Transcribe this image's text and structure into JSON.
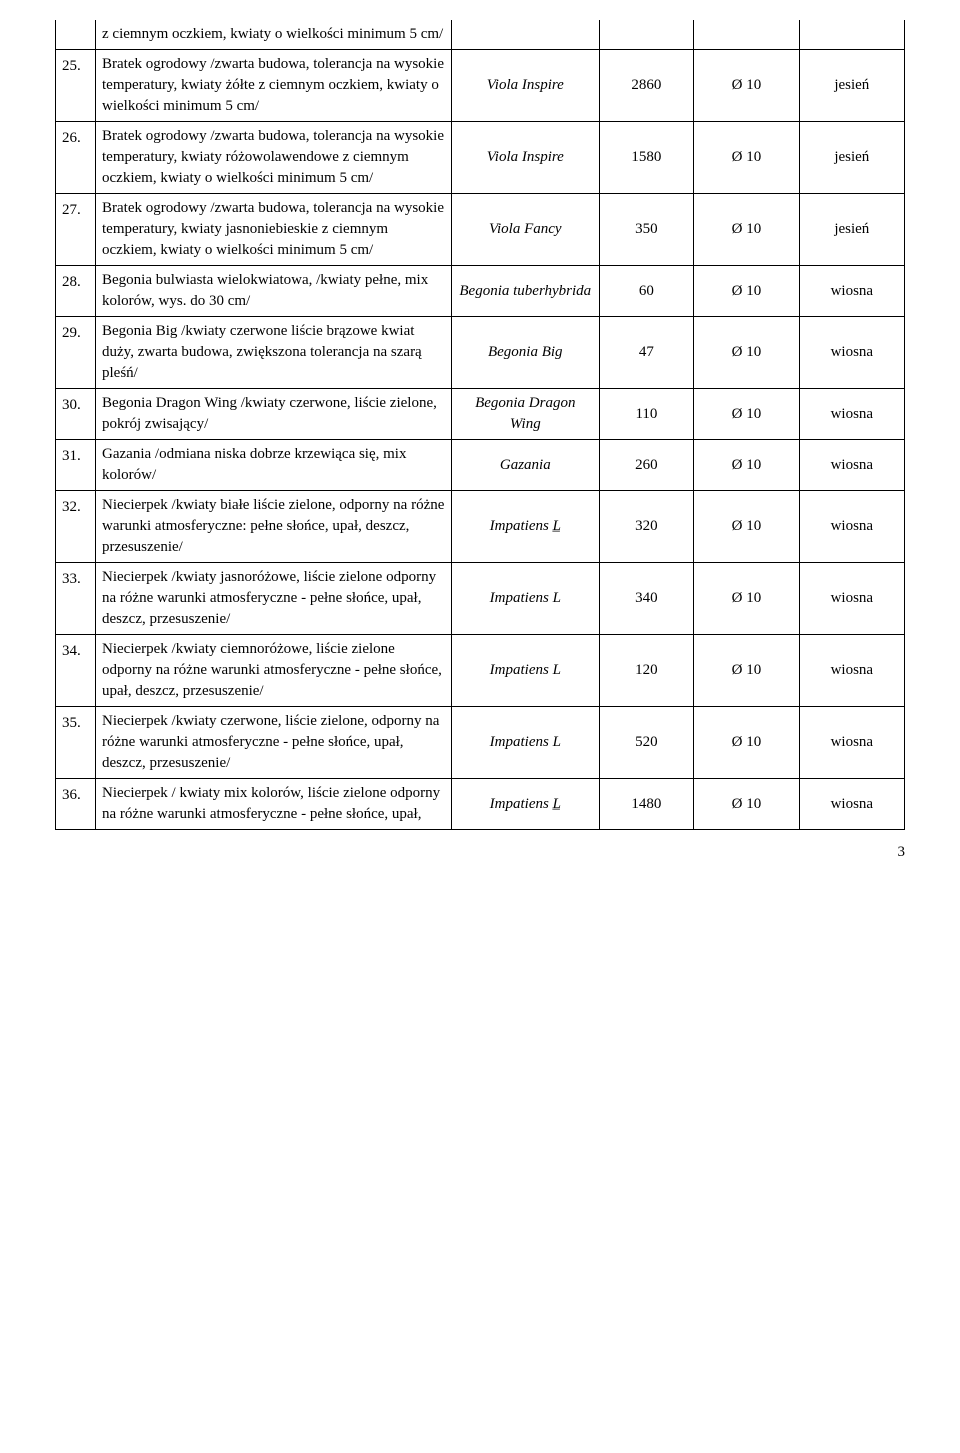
{
  "page_number": "3",
  "top_row": {
    "desc": "z ciemnym oczkiem, kwiaty o wielkości minimum 5 cm/"
  },
  "rows": [
    {
      "num": "25.",
      "desc": "Bratek ogrodowy\n/zwarta budowa, tolerancja na wysokie temperatury, kwiaty żółte z ciemnym oczkiem, kwiaty o wielkości minimum 5 cm/",
      "latin": "Viola Inspire",
      "qty": "2860",
      "dia": "Ø 10",
      "season": "jesień"
    },
    {
      "num": "26.",
      "desc": "Bratek ogrodowy\n/zwarta budowa, tolerancja na wysokie temperatury, kwiaty różowolawendowe z ciemnym oczkiem, kwiaty o wielkości minimum 5 cm/",
      "latin": "Viola Inspire",
      "qty": "1580",
      "dia": "Ø 10",
      "season": "jesień"
    },
    {
      "num": "27.",
      "desc": "Bratek ogrodowy\n/zwarta budowa, tolerancja na wysokie temperatury, kwiaty jasnoniebieskie z ciemnym oczkiem, kwiaty o wielkości minimum 5 cm/",
      "latin": "Viola Fancy",
      "qty": "350",
      "dia": "Ø 10",
      "season": "jesień"
    },
    {
      "num": "28.",
      "desc": "Begonia bulwiasta wielokwiatowa,\n/kwiaty pełne, mix kolorów, wys. do 30 cm/",
      "latin": "Begonia tuberhybrida",
      "qty": "60",
      "dia": "Ø 10",
      "season": "wiosna"
    },
    {
      "num": "29.",
      "desc": "Begonia Big\n/kwiaty czerwone liście brązowe kwiat duży, zwarta budowa, zwiększona tolerancja na szarą pleśń/",
      "latin": "Begonia Big",
      "qty": "47",
      "dia": "Ø 10",
      "season": "wiosna"
    },
    {
      "num": "30.",
      "desc": "Begonia Dragon Wing\n/kwiaty czerwone, liście zielone, pokrój zwisający/",
      "latin": "Begonia Dragon Wing",
      "qty": "110",
      "dia": "Ø 10",
      "season": "wiosna"
    },
    {
      "num": "31.",
      "desc": "Gazania\n/odmiana niska dobrze krzewiąca się, mix kolorów/",
      "latin": "Gazania",
      "qty": "260",
      "dia": "Ø 10",
      "season": "wiosna"
    },
    {
      "num": "32.",
      "desc": "Niecierpek\n/kwiaty białe liście zielone, odporny na różne warunki atmosferyczne: pełne słońce, upał, deszcz, przesuszenie/",
      "latin": "Impatiens L̲",
      "qty": "320",
      "dia": "Ø 10",
      "season": "wiosna"
    },
    {
      "num": "33.",
      "desc": "Niecierpek\n /kwiaty jasnoróżowe, liście zielone odporny na różne warunki atmosferyczne - pełne słońce, upał, deszcz, przesuszenie/",
      "latin": "Impatiens L",
      "qty": "340",
      "dia": "Ø 10",
      "season": "wiosna"
    },
    {
      "num": "34.",
      "desc": "Niecierpek\n/kwiaty ciemnoróżowe, liście zielone odporny na różne warunki atmosferyczne - pełne słońce, upał, deszcz, przesuszenie/",
      "latin": "Impatiens L",
      "qty": "120",
      "dia": "Ø 10",
      "season": "wiosna"
    },
    {
      "num": "35.",
      "desc": "Niecierpek\n/kwiaty czerwone, liście zielone, odporny na różne warunki atmosferyczne - pełne słońce, upał, deszcz, przesuszenie/",
      "latin": "Impatiens L",
      "qty": "520",
      "dia": "Ø 10",
      "season": "wiosna"
    },
    {
      "num": "36.",
      "desc": "Niecierpek\n/ kwiaty mix kolorów, liście zielone odporny na różne warunki atmosferyczne - pełne słońce, upał,",
      "latin": "Impatiens L̲",
      "qty": "1480",
      "dia": "Ø 10",
      "season": "wiosna"
    }
  ]
}
